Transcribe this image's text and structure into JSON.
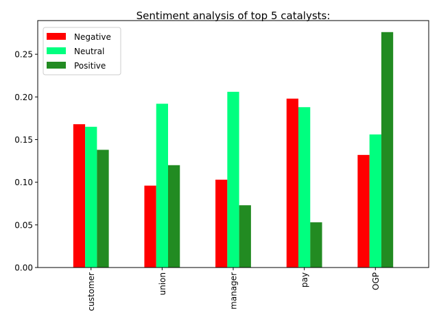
{
  "chart_data": {
    "type": "bar",
    "title": "Sentiment analysis of top 5 catalysts:",
    "xlabel": "",
    "ylabel": "",
    "categories": [
      "customer",
      "union",
      "manager",
      "pay",
      "OGP"
    ],
    "series": [
      {
        "name": "Negative",
        "color": "#ff0000",
        "values": [
          0.168,
          0.096,
          0.103,
          0.198,
          0.132
        ]
      },
      {
        "name": "Neutral",
        "color": "#00ff7f",
        "values": [
          0.165,
          0.192,
          0.206,
          0.188,
          0.156
        ]
      },
      {
        "name": "Positive",
        "color": "#228b22",
        "values": [
          0.138,
          0.12,
          0.073,
          0.053,
          0.276
        ]
      }
    ],
    "ylim": [
      0,
      0.2895
    ],
    "yticks": [
      "0.00",
      "0.05",
      "0.10",
      "0.15",
      "0.20",
      "0.25"
    ],
    "ytick_values": [
      0,
      0.05,
      0.1,
      0.15,
      0.2,
      0.25
    ],
    "legend_position": "top-left",
    "grid": false
  }
}
